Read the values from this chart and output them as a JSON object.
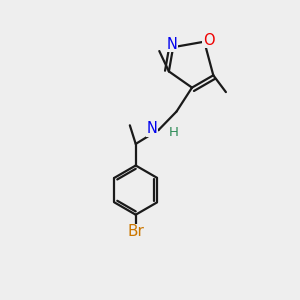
{
  "background_color": "#eeeeee",
  "bond_color": "#1a1a1a",
  "N_color": "#0000ee",
  "O_color": "#ee0000",
  "Br_color": "#cc7700",
  "H_color": "#2e8b57",
  "lw": 1.6,
  "xlim": [
    0,
    10
  ],
  "ylim": [
    0,
    10
  ]
}
